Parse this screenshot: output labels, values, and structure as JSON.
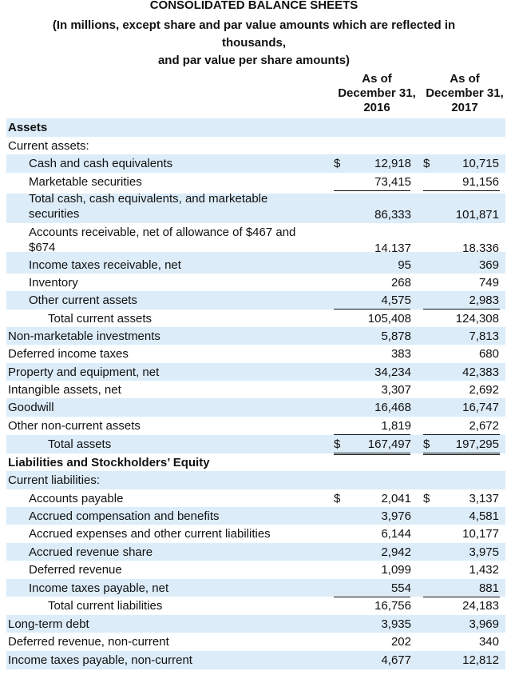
{
  "header": {
    "title": "CONSOLIDATED BALANCE SHEETS",
    "subtitle": [
      "(In millions, except share and par value amounts which are reflected in",
      "thousands,",
      "and par value per share amounts)"
    ]
  },
  "table": {
    "columns": [
      "As of December 31, 2016",
      "As of December 31, 2017"
    ],
    "rows": [
      {
        "label": "Assets"
      },
      {
        "label": "Current assets:"
      },
      {
        "label": "Cash and cash equivalents",
        "currency": [
          "$",
          "$"
        ],
        "values": [
          "12,918",
          "10,715"
        ]
      },
      {
        "label": "Marketable securities",
        "values": [
          "73,415",
          "91,156"
        ]
      },
      {
        "label": "Total cash, cash equivalents, and marketable securities",
        "values": [
          "86,333",
          "101,871"
        ]
      },
      {
        "label": "Accounts receivable, net of allowance of $467 and $674",
        "values": [
          "14,137",
          "18,336"
        ]
      },
      {
        "label": "Income taxes receivable, net",
        "values": [
          "95",
          "369"
        ]
      },
      {
        "label": "Inventory",
        "values": [
          "268",
          "749"
        ]
      },
      {
        "label": "Other current assets",
        "values": [
          "4,575",
          "2,983"
        ]
      },
      {
        "label": "Total current assets",
        "values": [
          "105,408",
          "124,308"
        ]
      },
      {
        "label": "Non-marketable investments",
        "values": [
          "5,878",
          "7,813"
        ]
      },
      {
        "label": "Deferred income taxes",
        "values": [
          "383",
          "680"
        ]
      },
      {
        "label": "Property and equipment, net",
        "values": [
          "34,234",
          "42,383"
        ]
      },
      {
        "label": "Intangible assets, net",
        "values": [
          "3,307",
          "2,692"
        ]
      },
      {
        "label": "Goodwill",
        "values": [
          "16,468",
          "16,747"
        ]
      },
      {
        "label": "Other non-current assets",
        "values": [
          "1,819",
          "2,672"
        ]
      },
      {
        "label": "Total assets",
        "currency": [
          "$",
          "$"
        ],
        "values": [
          "167,497",
          "197,295"
        ]
      },
      {
        "label": "Liabilities and Stockholders’ Equity"
      },
      {
        "label": "Current liabilities:"
      },
      {
        "label": "Accounts payable",
        "currency": [
          "$",
          "$"
        ],
        "values": [
          "2,041",
          "3,137"
        ]
      },
      {
        "label": "Accrued compensation and benefits",
        "values": [
          "3,976",
          "4,581"
        ]
      },
      {
        "label": "Accrued expenses and other current liabilities",
        "values": [
          "6,144",
          "10,177"
        ]
      },
      {
        "label": "Accrued revenue share",
        "values": [
          "2,942",
          "3,975"
        ]
      },
      {
        "label": "Deferred revenue",
        "values": [
          "1,099",
          "1,432"
        ]
      },
      {
        "label": "Income taxes payable, net",
        "values": [
          "554",
          "881"
        ]
      },
      {
        "label": "Total current liabilities",
        "values": [
          "16,756",
          "24,183"
        ]
      },
      {
        "label": "Long-term debt",
        "values": [
          "3,935",
          "3,969"
        ]
      },
      {
        "label": "Deferred revenue, non-current",
        "values": [
          "202",
          "340"
        ]
      },
      {
        "label": "Income taxes payable, non-current",
        "values": [
          "4,677",
          "12,812"
        ]
      }
    ]
  }
}
